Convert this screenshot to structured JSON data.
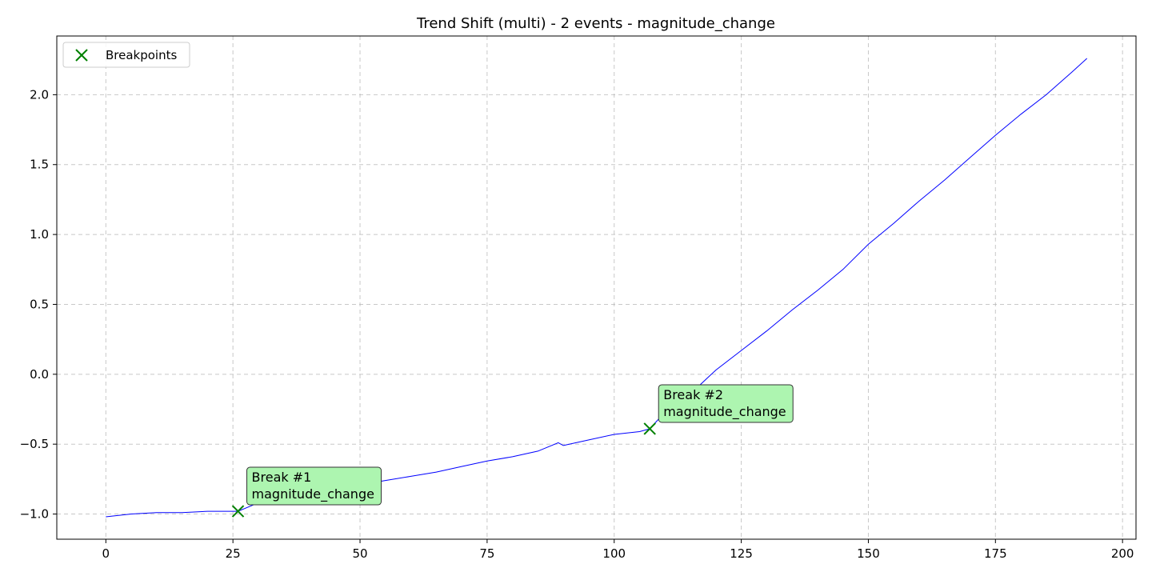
{
  "chart_data": {
    "type": "line",
    "title": "Trend Shift (multi) - 2 events - magnitude_change",
    "xlabel": "",
    "ylabel": "",
    "xlim": [
      -9.65,
      202.65
    ],
    "ylim": [
      -1.18,
      2.42
    ],
    "xticks": [
      0,
      25,
      50,
      75,
      100,
      125,
      150,
      175,
      200
    ],
    "yticks": [
      -1.0,
      -0.5,
      0.0,
      0.5,
      1.0,
      1.5,
      2.0
    ],
    "xtick_labels": [
      "0",
      "25",
      "50",
      "75",
      "100",
      "125",
      "150",
      "175",
      "200"
    ],
    "ytick_labels": [
      "−1.0",
      "−0.5",
      "0.0",
      "0.5",
      "1.0",
      "1.5",
      "2.0"
    ],
    "grid": true,
    "legend_position": "top-left",
    "series": [
      {
        "color": "#0000ff",
        "x": [
          0,
          5,
          10,
          15,
          20,
          26,
          30,
          35,
          40,
          45,
          50,
          55,
          60,
          65,
          70,
          75,
          80,
          85,
          89,
          90,
          95,
          100,
          105,
          107,
          110,
          115,
          120,
          125,
          130,
          135,
          140,
          145,
          150,
          155,
          160,
          165,
          170,
          175,
          180,
          185,
          190,
          193
        ],
        "y": [
          -1.02,
          -1.0,
          -0.99,
          -0.99,
          -0.98,
          -0.98,
          -0.92,
          -0.88,
          -0.85,
          -0.82,
          -0.79,
          -0.76,
          -0.73,
          -0.7,
          -0.66,
          -0.62,
          -0.59,
          -0.55,
          -0.49,
          -0.51,
          -0.47,
          -0.43,
          -0.41,
          -0.39,
          -0.27,
          -0.14,
          0.03,
          0.17,
          0.31,
          0.46,
          0.6,
          0.75,
          0.93,
          1.08,
          1.24,
          1.39,
          1.55,
          1.71,
          1.86,
          2.0,
          2.16,
          2.26
        ]
      },
      {
        "name": "Breakpoints",
        "type": "scatter",
        "marker": "x",
        "color": "#008000",
        "x": [
          26,
          107
        ],
        "y": [
          -0.98,
          -0.39
        ]
      }
    ],
    "annotations": [
      {
        "x": 26,
        "y": -0.98,
        "lines": [
          "Break #1",
          "magnitude_change"
        ]
      },
      {
        "x": 107,
        "y": -0.39,
        "lines": [
          "Break #2",
          "magnitude_change"
        ]
      }
    ],
    "annotation_box_color": "#adf5b0"
  }
}
